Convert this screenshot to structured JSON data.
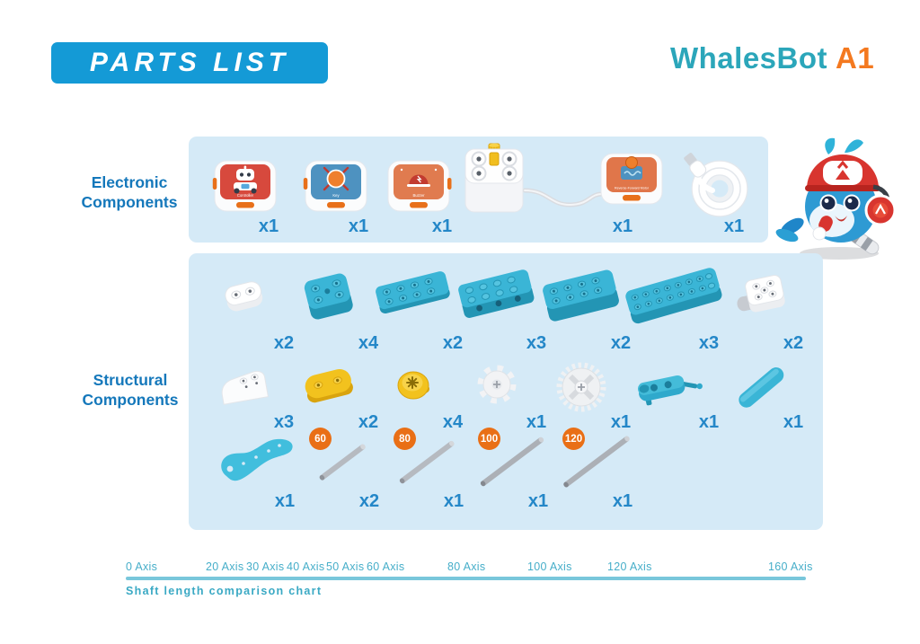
{
  "page": {
    "banner": "PARTS LIST"
  },
  "logo": {
    "brand": "WhalesBot",
    "model": "A1",
    "brand_color": "#2ba6ba",
    "model_color": "#f4791f"
  },
  "sections": {
    "electronic": {
      "label": [
        "Electronic",
        "Components"
      ]
    },
    "structural": {
      "label": [
        "Structural",
        "Components"
      ]
    }
  },
  "electronic_items": [
    {
      "name": "controller-block",
      "label": "Controller",
      "qty": "x1"
    },
    {
      "name": "key-block",
      "label": "Key",
      "qty": "x1"
    },
    {
      "name": "buzzer-block",
      "label": "Buzzer",
      "qty": "x1"
    },
    {
      "name": "motor-with-driver-block",
      "label": "Reverse-Forward Motor",
      "qty": "x1"
    },
    {
      "name": "usb-cable",
      "qty": "x1"
    }
  ],
  "structural_rows": {
    "row1": [
      {
        "name": "white-1x2-plate",
        "qty": "x2"
      },
      {
        "name": "teal-2x2-block",
        "qty": "x4"
      },
      {
        "name": "teal-2x4-plate",
        "qty": "x2"
      },
      {
        "name": "teal-2x4-block-side-holes",
        "qty": "x3"
      },
      {
        "name": "teal-2x4-brick",
        "qty": "x2"
      },
      {
        "name": "teal-2x8-brick",
        "qty": "x3"
      },
      {
        "name": "white-axle-block",
        "qty": "x2"
      }
    ],
    "row2": [
      {
        "name": "white-wedge-block",
        "qty": "x3"
      },
      {
        "name": "yellow-round-plate",
        "qty": "x2"
      },
      {
        "name": "yellow-pulley",
        "qty": "x4"
      },
      {
        "name": "white-pinion-gear",
        "qty": "x1"
      },
      {
        "name": "white-crown-gear",
        "qty": "x1"
      },
      {
        "name": "teal-crank-handle",
        "qty": "x1"
      },
      {
        "name": "teal-round-beam",
        "qty": "x1"
      }
    ],
    "row3": [
      {
        "name": "teal-fin",
        "qty": "x1"
      },
      {
        "name": "shaft-60",
        "badge": "60",
        "qty": "x2"
      },
      {
        "name": "shaft-80",
        "badge": "80",
        "qty": "x1"
      },
      {
        "name": "shaft-100",
        "badge": "100",
        "qty": "x1"
      },
      {
        "name": "shaft-120",
        "badge": "120",
        "qty": "x1"
      }
    ]
  },
  "axis_chart": {
    "caption": "Shaft length comparison chart",
    "max_value": 160,
    "ticks": [
      {
        "label": "0 Axis",
        "value": 0
      },
      {
        "label": "20 Axis",
        "value": 20
      },
      {
        "label": "30 Axis",
        "value": 30
      },
      {
        "label": "40 Axis",
        "value": 40
      },
      {
        "label": "50 Axis",
        "value": 50
      },
      {
        "label": "60 Axis",
        "value": 60
      },
      {
        "label": "80 Axis",
        "value": 80
      },
      {
        "label": "100 Axis",
        "value": 100
      },
      {
        "label": "120 Axis",
        "value": 120
      },
      {
        "label": "160 Axis",
        "value": 160
      }
    ]
  },
  "colors": {
    "banner_blue": "#149ad6",
    "panel_blue": "#d5eaf7",
    "label_blue": "#1578bb",
    "qty_blue": "#2487c8",
    "part_teal": "#3ab5d6",
    "part_yellow": "#f2c21e",
    "badge_orange": "#e96f16",
    "axis_teal": "#46aec9"
  }
}
